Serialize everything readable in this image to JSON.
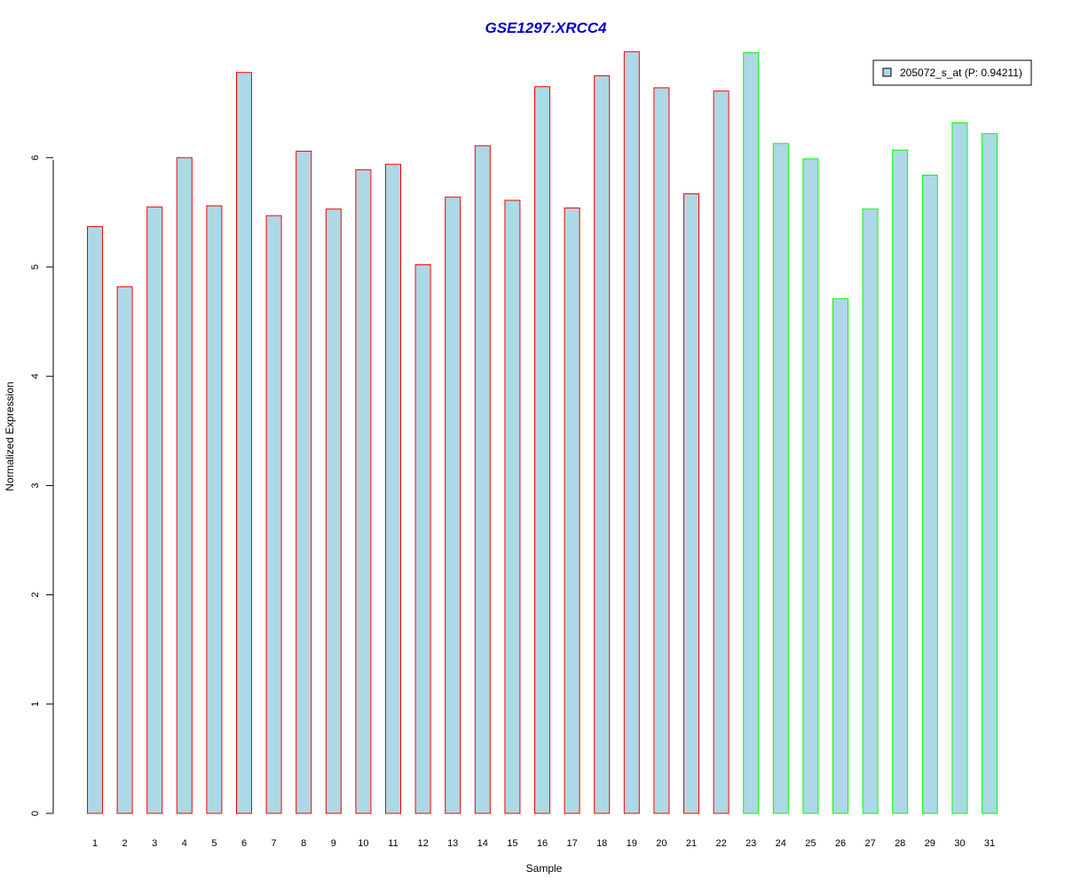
{
  "chart_data": {
    "type": "bar",
    "title": "GSE1297:XRCC4",
    "xlabel": "Sample",
    "ylabel": "Normalized Expression",
    "ylim": [
      0,
      7
    ],
    "yticks": [
      "0",
      "1",
      "2",
      "3",
      "4",
      "5",
      "6"
    ],
    "categories": [
      "1",
      "2",
      "3",
      "4",
      "5",
      "6",
      "7",
      "8",
      "9",
      "10",
      "11",
      "12",
      "13",
      "14",
      "15",
      "16",
      "17",
      "18",
      "19",
      "20",
      "21",
      "22",
      "23",
      "24",
      "25",
      "26",
      "27",
      "28",
      "29",
      "30",
      "31"
    ],
    "values": [
      5.37,
      4.82,
      5.55,
      6.0,
      5.56,
      6.78,
      5.47,
      6.06,
      5.53,
      5.89,
      5.94,
      5.02,
      5.64,
      6.11,
      5.61,
      6.65,
      5.54,
      6.75,
      6.97,
      6.64,
      5.67,
      6.61,
      6.96,
      6.13,
      5.99,
      4.71,
      5.53,
      6.07,
      5.84,
      6.32,
      6.22
    ],
    "groups": [
      "red",
      "red",
      "red",
      "red",
      "red",
      "red",
      "red",
      "red",
      "red",
      "red",
      "red",
      "red",
      "red",
      "red",
      "red",
      "red",
      "red",
      "red",
      "red",
      "red",
      "red",
      "red",
      "green",
      "green",
      "green",
      "green",
      "green",
      "green",
      "green",
      "green",
      "green"
    ],
    "grid": false,
    "legend": {
      "position": "top-right",
      "entries": [
        "205072_s_at (P: 0.94211)"
      ]
    },
    "colors": {
      "bar_fill": "#add8e6",
      "group_red": "#ff0000",
      "group_green": "#00ff00",
      "title": "#0000cc",
      "axis": "#000000"
    }
  }
}
